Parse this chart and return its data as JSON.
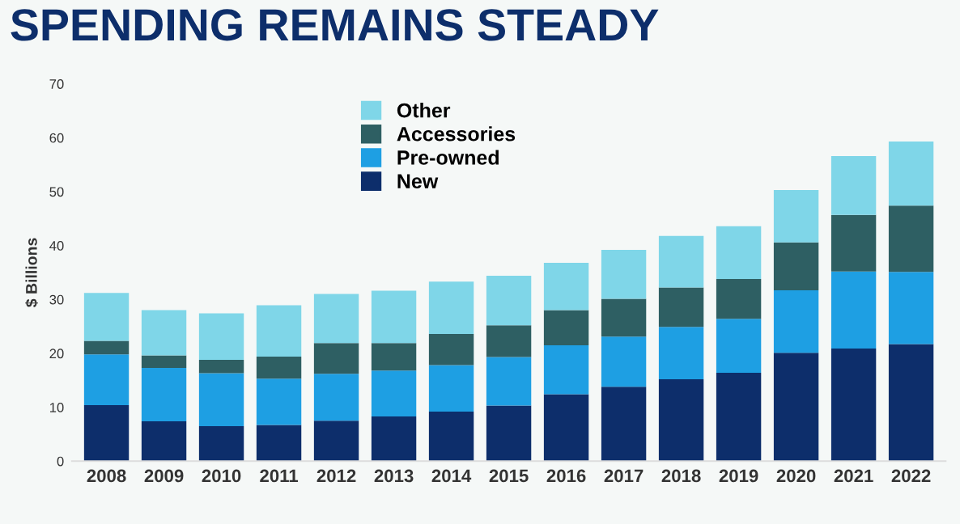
{
  "chart_data": {
    "type": "bar",
    "title": "SPENDING REMAINS STEADY",
    "ylabel": "$ Billions",
    "stacked": true,
    "legend": "top",
    "grid": false,
    "categories": [
      "2008",
      "2009",
      "2010",
      "2011",
      "2012",
      "2013",
      "2014",
      "2015",
      "2016",
      "2017",
      "2018",
      "2019",
      "2020",
      "2021",
      "2022"
    ],
    "ylim": [
      0,
      70
    ],
    "yticks": [
      0,
      10,
      20,
      30,
      40,
      50,
      60,
      70
    ],
    "series": [
      {
        "name": "New",
        "color": "#0d2e6b",
        "values": [
          10.4,
          7.4,
          6.5,
          6.7,
          7.5,
          8.3,
          9.2,
          10.3,
          12.4,
          13.8,
          15.2,
          16.4,
          20.1,
          20.9,
          21.7
        ]
      },
      {
        "name": "Pre-owned",
        "color": "#1e9fe3",
        "values": [
          9.4,
          9.9,
          9.8,
          8.6,
          8.7,
          8.5,
          8.6,
          9.0,
          9.1,
          9.3,
          9.7,
          10.0,
          11.6,
          14.3,
          13.4
        ]
      },
      {
        "name": "Accessories",
        "color": "#2e5f63",
        "values": [
          2.5,
          2.3,
          2.5,
          4.1,
          5.7,
          5.1,
          5.8,
          5.9,
          6.5,
          7.0,
          7.3,
          7.4,
          8.9,
          10.5,
          12.3
        ]
      },
      {
        "name": "Other",
        "color": "#7fd6e8",
        "values": [
          8.9,
          8.4,
          8.6,
          9.5,
          9.1,
          9.7,
          9.7,
          9.2,
          8.8,
          9.1,
          9.6,
          9.8,
          9.7,
          10.9,
          11.9
        ]
      }
    ]
  }
}
